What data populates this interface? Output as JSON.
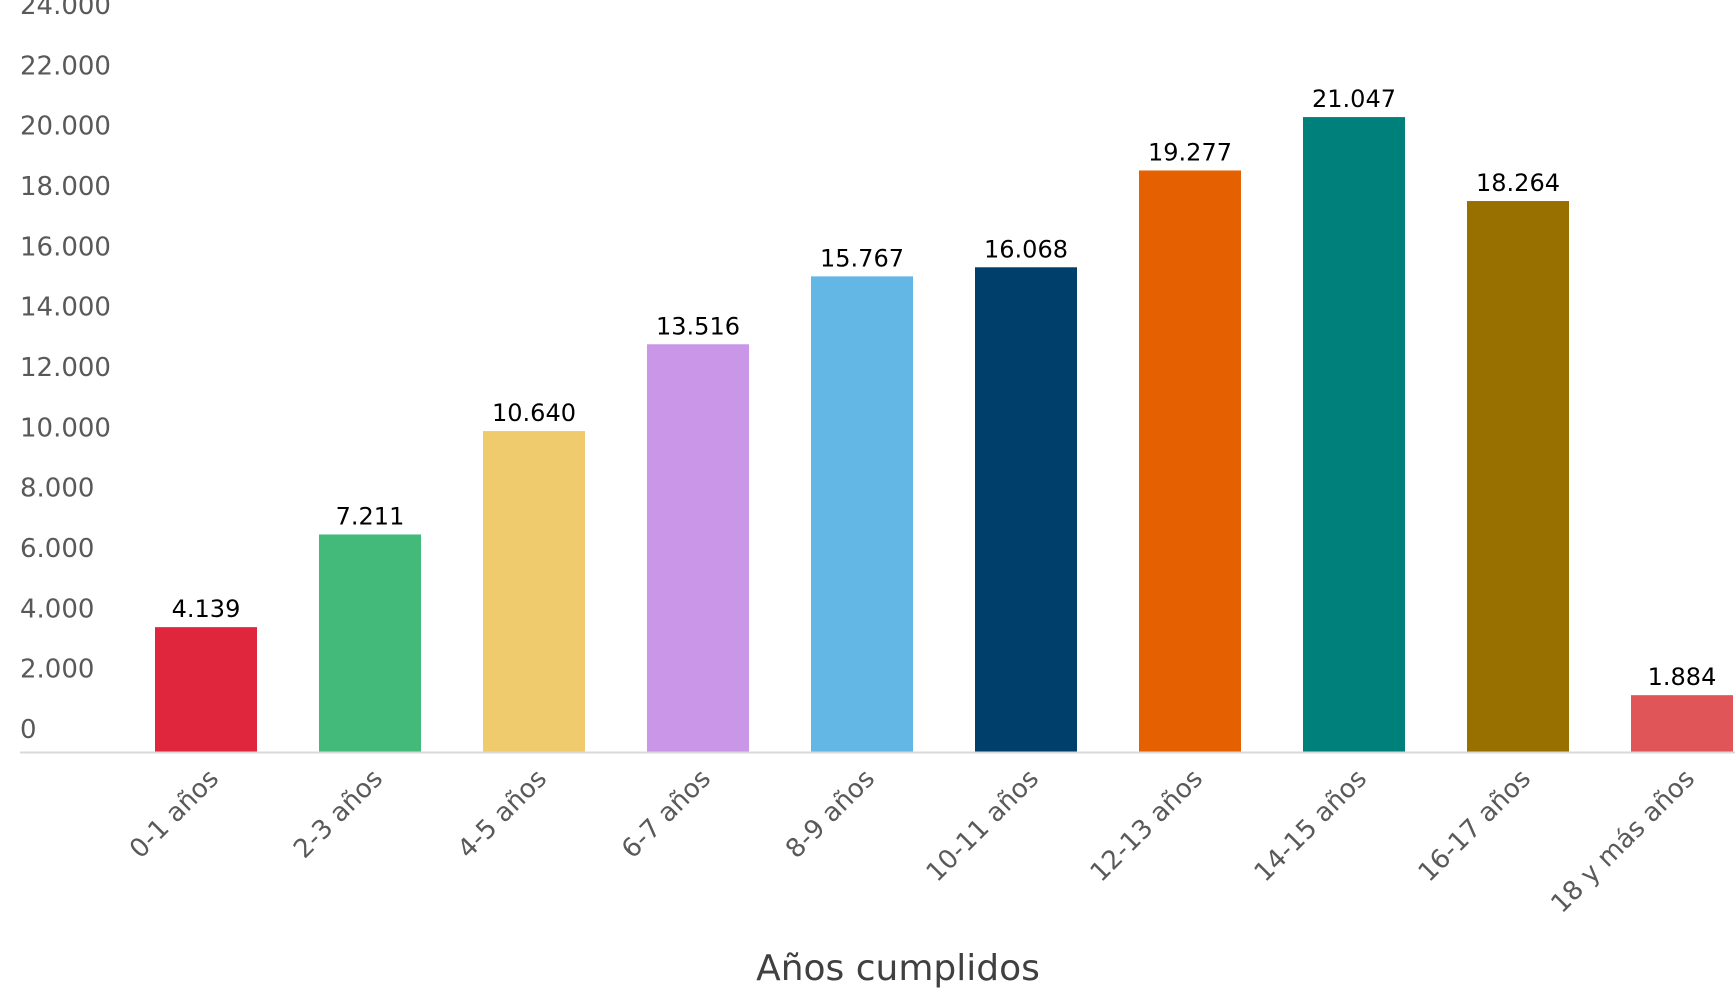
{
  "chart_data": {
    "type": "bar",
    "title": "",
    "xlabel": "Años cumplidos",
    "ylabel": "",
    "ylim": [
      0,
      24000
    ],
    "ytick_step": 2000,
    "yticks": [
      "0",
      "2.000",
      "4.000",
      "6.000",
      "8.000",
      "10.000",
      "12.000",
      "14.000",
      "16.000",
      "18.000",
      "20.000",
      "22.000",
      "24.000"
    ],
    "grid": false,
    "legend": "none",
    "categories": [
      "0-1 años",
      "2-3 años",
      "4-5 años",
      "6-7 años",
      "8-9 años",
      "10-11 años",
      "12-13 años",
      "14-15 años",
      "16-17 años",
      "18 y más años"
    ],
    "values": [
      4139,
      7211,
      10640,
      13516,
      15767,
      16068,
      19277,
      21047,
      18264,
      1884
    ],
    "value_labels": [
      "4.139",
      "7.211",
      "10.640",
      "13.516",
      "15.767",
      "16.068",
      "19.277",
      "21.047",
      "18.264",
      "1.884"
    ],
    "colors": [
      "#E0263D",
      "#43B97A",
      "#F0CB6E",
      "#CA96E8",
      "#62B7E5",
      "#003F6B",
      "#E56000",
      "#00807A",
      "#977000",
      "#DF5558"
    ]
  }
}
